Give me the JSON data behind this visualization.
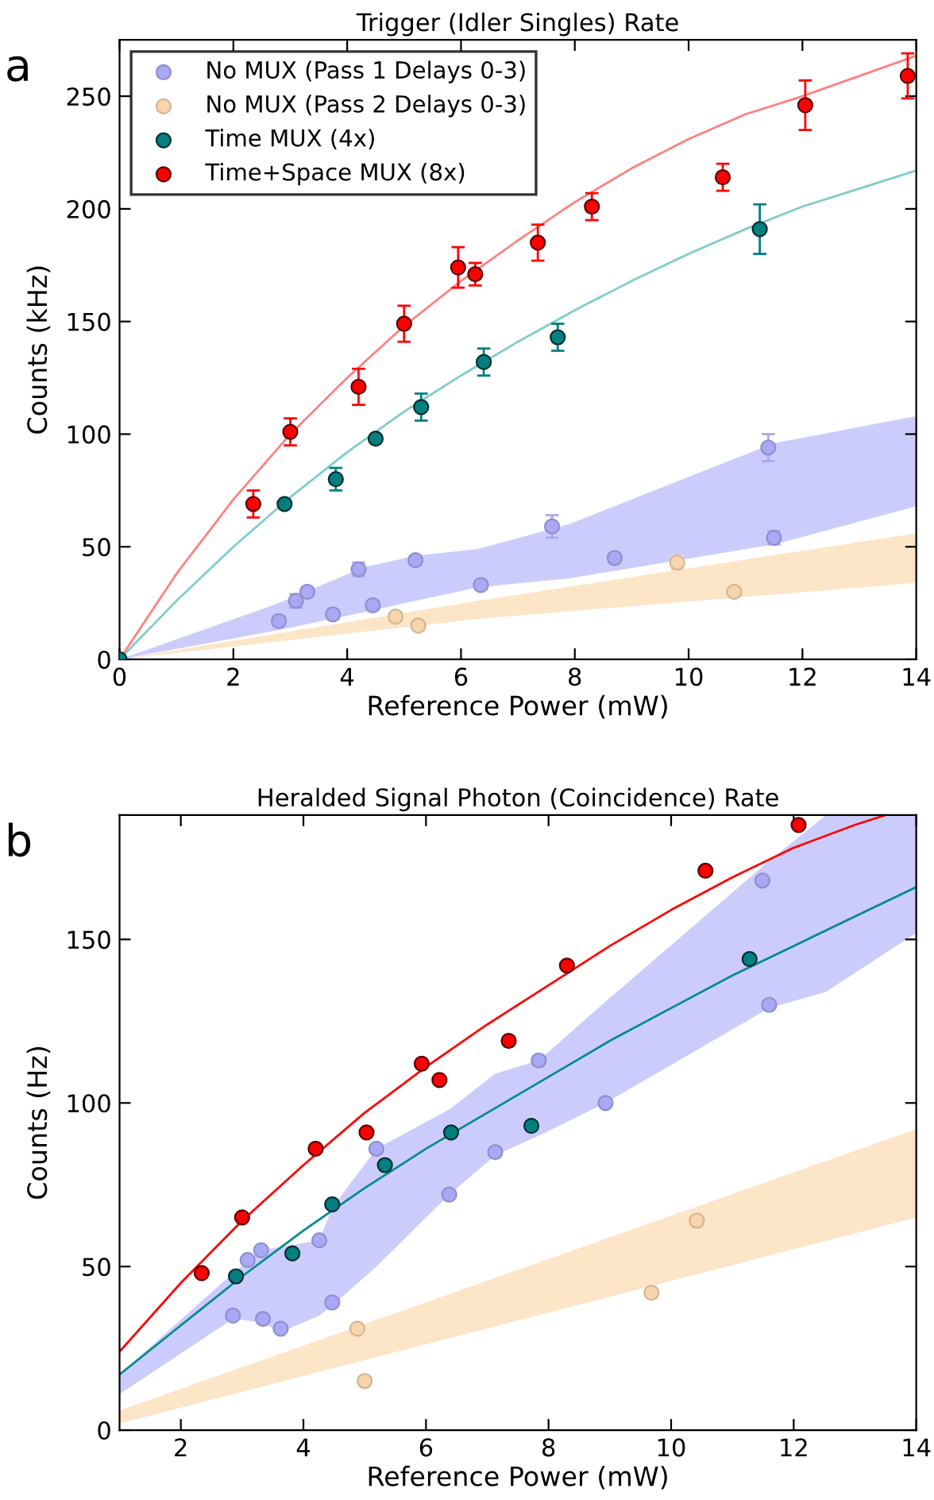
{
  "chart_data": [
    {
      "type": "scatter",
      "title": "Trigger (Idler Singles) Rate",
      "xlabel": "Reference Power (mW)",
      "ylabel": "Counts (kHz)",
      "annotations": [
        "a"
      ],
      "xlim": [
        0,
        14
      ],
      "ylim": [
        0,
        275
      ],
      "xticks": [
        0,
        2,
        4,
        6,
        8,
        10,
        12,
        14
      ],
      "yticks": [
        0,
        50,
        100,
        150,
        200,
        250
      ],
      "legend": "top left",
      "marker": "circle",
      "series": [
        {
          "type": "area",
          "color": "#ccccfc",
          "x": [
            0,
            2.8,
            4.3,
            5.2,
            6.3,
            7.9,
            11.5,
            14
          ],
          "values": [
            null,
            null,
            null,
            null,
            null,
            null,
            null,
            null
          ],
          "lower": [
            0,
            13,
            21,
            26,
            32,
            36,
            51,
            68
          ],
          "upper": [
            0,
            25,
            41,
            46,
            49,
            60,
            96,
            108
          ]
        },
        {
          "type": "area",
          "color": "#fde5c8",
          "x": [
            0,
            6.3,
            14
          ],
          "values": [
            null,
            null,
            null
          ],
          "lower": [
            0,
            18,
            34
          ],
          "upper": [
            0,
            26,
            56
          ]
        },
        {
          "type": "line",
          "marker": "none",
          "color": "#ff8080",
          "x": [
            0,
            1,
            2,
            3,
            4,
            5,
            6,
            7,
            8,
            9,
            10,
            11,
            12,
            13,
            14
          ],
          "values": [
            0,
            38,
            71,
            100,
            125,
            148,
            168,
            186,
            203,
            218,
            231,
            242,
            250,
            259,
            268
          ]
        },
        {
          "type": "line",
          "marker": "none",
          "color": "#80cccc",
          "x": [
            0,
            1,
            2,
            3,
            4,
            5,
            6,
            7,
            8,
            9,
            10,
            11,
            12,
            13,
            14
          ],
          "values": [
            0,
            26,
            50,
            72,
            92,
            110,
            126,
            141,
            155,
            168,
            180,
            191,
            201,
            209,
            217
          ]
        },
        {
          "name": "No MUX (Pass 1 Delays 0-3)",
          "color": "#a8a8f5",
          "x": [
            2.8,
            3.1,
            3.3,
            3.75,
            4.2,
            4.45,
            5.2,
            6.35,
            7.6,
            8.7,
            11.4,
            11.5
          ],
          "values": [
            17,
            26,
            30,
            20,
            40,
            24,
            44,
            33,
            59,
            45,
            94,
            54
          ],
          "errors": [
            2,
            3,
            2,
            2,
            3,
            2,
            2,
            2,
            5,
            2,
            6,
            3
          ]
        },
        {
          "name": "No MUX (Pass 2 Delays 0-3)",
          "color": "#f8d5ad",
          "x": [
            4.85,
            5.25,
            9.8,
            10.8
          ],
          "values": [
            19,
            15,
            43,
            30
          ],
          "errors": [
            2,
            2,
            3,
            2
          ]
        },
        {
          "name": "Time MUX (4x)",
          "color": "#008080",
          "x": [
            0,
            2.9,
            3.8,
            4.5,
            5.3,
            6.4,
            7.7,
            11.25
          ],
          "values": [
            0,
            69,
            80,
            98,
            112,
            132,
            143,
            191
          ],
          "errors": [
            null,
            null,
            5,
            1,
            6,
            6,
            6,
            11
          ]
        },
        {
          "name": "Time+Space MUX (8x)",
          "color": "#ff0000",
          "x": [
            2.35,
            3.0,
            4.2,
            5.0,
            5.95,
            6.25,
            7.35,
            8.3,
            10.6,
            12.05,
            13.85
          ],
          "values": [
            69,
            101,
            121,
            149,
            174,
            171,
            185,
            201,
            214,
            246,
            259
          ],
          "errors": [
            6,
            6,
            8,
            8,
            9,
            5,
            8,
            6,
            6,
            11,
            10
          ]
        }
      ]
    },
    {
      "type": "scatter",
      "title": "Heralded Signal Photon (Coincidence) Rate",
      "xlabel": "Reference Power (mW)",
      "ylabel": "Counts (Hz)",
      "annotations": [
        "b"
      ],
      "xlim": [
        1,
        14
      ],
      "ylim": [
        0,
        188
      ],
      "xticks": [
        2,
        4,
        6,
        8,
        10,
        12,
        14
      ],
      "yticks": [
        0,
        50,
        100,
        150
      ],
      "marker": "circle",
      "series": [
        {
          "type": "area",
          "color": "#ccccfc",
          "x": [
            1,
            2.85,
            3.31,
            3.63,
            4.26,
            4.47,
            5.19,
            6.38,
            7.13,
            7.84,
            8.93,
            11.6,
            12.53,
            14
          ],
          "values": [
            null,
            null,
            null,
            null,
            null,
            null,
            null,
            null,
            null,
            null,
            null,
            null,
            null,
            null
          ],
          "lower": [
            11,
            34,
            33,
            30,
            35,
            38,
            50,
            72,
            84,
            90,
            100,
            129,
            134,
            152
          ],
          "upper": [
            17,
            48,
            55,
            56,
            58,
            68,
            86,
            98,
            109,
            113,
            131,
            174,
            188,
            188
          ]
        },
        {
          "type": "area",
          "color": "#fde5c8",
          "x": [
            1,
            14
          ],
          "values": [
            null,
            null
          ],
          "lower": [
            2,
            65
          ],
          "upper": [
            6,
            92
          ]
        },
        {
          "type": "line",
          "marker": "none",
          "color": "#ff0000",
          "x": [
            1,
            2,
            3,
            4,
            5,
            6,
            7,
            8,
            9,
            10,
            11,
            12,
            13,
            13.5
          ],
          "values": [
            24,
            45,
            64,
            81,
            97,
            111,
            124,
            136,
            148,
            159,
            169,
            178,
            185,
            188
          ]
        },
        {
          "type": "line",
          "marker": "none",
          "color": "#008b8b",
          "x": [
            1,
            2,
            3,
            4,
            5,
            6,
            7,
            8,
            9,
            10,
            11,
            12,
            13,
            14
          ],
          "values": [
            17,
            32,
            47,
            61,
            74,
            86,
            97,
            108,
            119,
            129,
            139,
            148,
            157,
            166
          ]
        },
        {
          "color": "#a8a8f5",
          "x": [
            2.85,
            3.09,
            3.31,
            3.34,
            3.63,
            4.26,
            4.47,
            5.19,
            6.38,
            7.13,
            7.84,
            8.93,
            11.49,
            11.6
          ],
          "values": [
            35,
            52,
            55,
            34,
            31,
            58,
            39,
            86,
            72,
            85,
            113,
            100,
            168,
            130
          ]
        },
        {
          "color": "#f8d5ad",
          "x": [
            4.88,
            5.0,
            9.68,
            10.42
          ],
          "values": [
            31,
            15,
            42,
            64
          ]
        },
        {
          "color": "#008080",
          "x": [
            2.9,
            3.82,
            4.47,
            5.33,
            6.41,
            7.72,
            11.28
          ],
          "values": [
            47,
            54,
            69,
            81,
            91,
            93,
            144
          ]
        },
        {
          "color": "#ff0000",
          "x": [
            2.34,
            3.0,
            4.2,
            5.03,
            5.93,
            6.22,
            7.35,
            8.3,
            10.56,
            12.08
          ],
          "values": [
            48,
            65,
            86,
            91,
            112,
            107,
            119,
            142,
            171,
            185
          ]
        }
      ]
    }
  ]
}
